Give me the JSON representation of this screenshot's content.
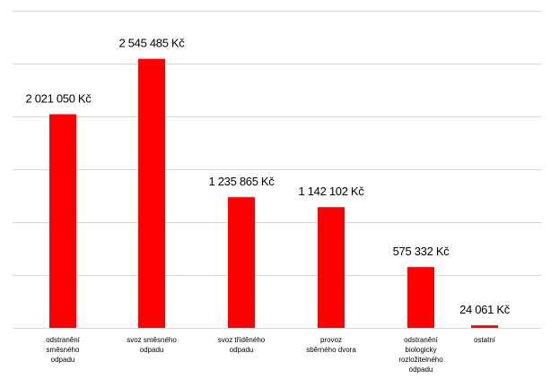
{
  "chart_data": {
    "type": "bar",
    "categories": [
      [
        "odstranění",
        "směsného",
        "odpadu"
      ],
      [
        "svoz směsného",
        "odpadu"
      ],
      [
        "svoz tříděného",
        "odpadu"
      ],
      [
        "provoz",
        "sběrného dvora"
      ],
      [
        "odstranění",
        "biologicky",
        "rozložitelného",
        "odpadu"
      ],
      [
        "ostatní"
      ]
    ],
    "values": [
      2021050,
      2545485,
      1235865,
      1142102,
      575332,
      24061
    ],
    "data_labels": [
      "2 021 050 Kč",
      "2 545 485 Kč",
      "1 235 865 Kč",
      "1 142 102 Kč",
      "575 332 Kč",
      "24 061 Kč"
    ],
    "ylim": [
      0,
      3000000
    ],
    "grid": true,
    "legend": "none",
    "colors": {
      "bar": "#ff0000",
      "grid": "#d9d9d9",
      "text": "#000000"
    }
  }
}
